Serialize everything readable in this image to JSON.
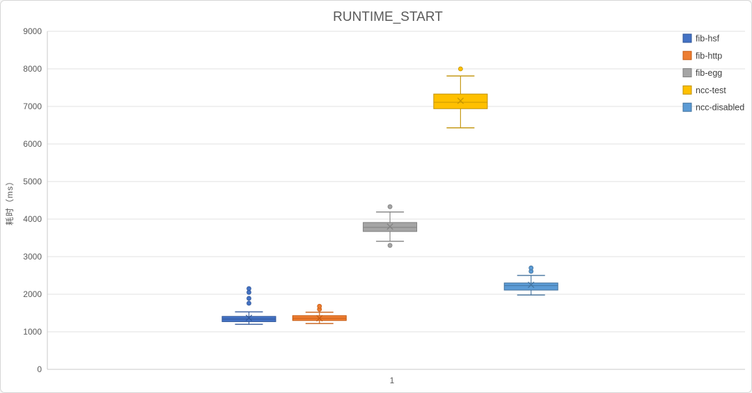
{
  "title": "RUNTIME_START",
  "canvas": {
    "background": "#FFFFFF",
    "border_color": "#D6D6D6",
    "axis_color": "#C9C9C9",
    "gridline_color": "#E2E2E2",
    "label_color": "#595959",
    "legend_label_color": "#404040"
  },
  "chart_data": {
    "type": "boxplot",
    "title": "RUNTIME_START",
    "xlabel": "",
    "ylabel": "耗时（ms）",
    "categories": [
      "1"
    ],
    "grid": true,
    "legend_position": "right",
    "y_axis": {
      "min": 0,
      "max": 9000,
      "tick_interval": 1000,
      "tick_labels": [
        "0",
        "1000",
        "2000",
        "3000",
        "4000",
        "5000",
        "6000",
        "7000",
        "8000",
        "9000"
      ]
    },
    "series": [
      {
        "name": "fib-hsf",
        "fill": "#4472C4",
        "border": "#2F5597",
        "whisker_low": 1200,
        "q1": 1270,
        "median": 1340,
        "q3": 1410,
        "whisker_high": 1530,
        "mean": 1370,
        "outliers": [
          1760,
          1890,
          2050,
          2150
        ]
      },
      {
        "name": "fib-http",
        "fill": "#ED7D31",
        "border": "#C55A11",
        "whisker_low": 1220,
        "q1": 1300,
        "median": 1360,
        "q3": 1430,
        "whisker_high": 1520,
        "mean": 1360,
        "outliers": [
          1600,
          1680
        ]
      },
      {
        "name": "fib-egg",
        "fill": "#A5A5A5",
        "border": "#7F7F7F",
        "whisker_low": 3410,
        "q1": 3670,
        "median": 3780,
        "q3": 3910,
        "whisker_high": 4190,
        "mean": 3800,
        "outliers": [
          3300,
          4330
        ]
      },
      {
        "name": "ncc-test",
        "fill": "#FFC000",
        "border": "#BF9000",
        "whisker_low": 6430,
        "q1": 6940,
        "median": 7110,
        "q3": 7330,
        "whisker_high": 7810,
        "mean": 7150,
        "outliers": [
          8000
        ]
      },
      {
        "name": "ncc-disabled",
        "fill": "#5B9BD5",
        "border": "#41719C",
        "whisker_low": 1980,
        "q1": 2110,
        "median": 2230,
        "q3": 2300,
        "whisker_high": 2500,
        "mean": 2250,
        "outliers": [
          2610,
          2700
        ]
      }
    ]
  }
}
